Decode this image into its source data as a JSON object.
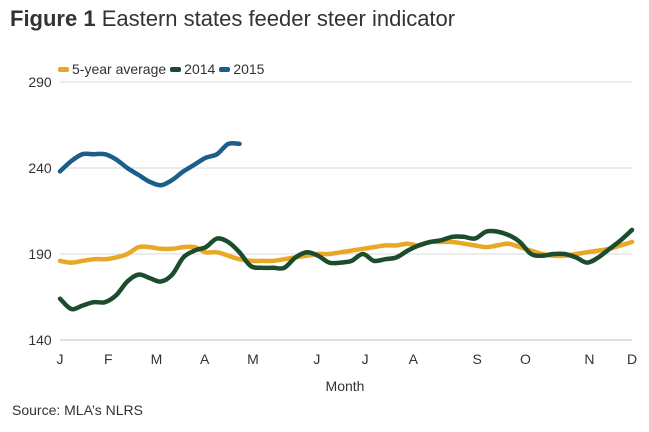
{
  "title": {
    "figure_label": "Figure 1",
    "text": "Eastern states feeder steer indicator"
  },
  "source": "Source: MLA’s NLRS",
  "chart_data": {
    "type": "line",
    "title": "Eastern states feeder steer indicator",
    "xlabel": "Month",
    "ylabel": "",
    "x_ticks": [
      "J",
      "F",
      "M",
      "A",
      "M",
      "J",
      "J",
      "A",
      "S",
      "O",
      "N",
      "D"
    ],
    "x_tick_positions": [
      0,
      4.3,
      8.6,
      12.9,
      17.2,
      22.9,
      27.2,
      31.5,
      37.2,
      41.5,
      47.2,
      51
    ],
    "xlim": [
      0,
      51
    ],
    "ylim": [
      140,
      290
    ],
    "yticks": [
      140,
      190,
      240,
      290
    ],
    "grid": "horizontal",
    "legend_position": "top-left",
    "series": [
      {
        "name": "5-year average",
        "color": "#E8A825",
        "x": [
          0,
          1,
          2,
          3,
          4,
          5,
          6,
          7,
          8,
          9,
          10,
          11,
          12,
          13,
          14,
          15,
          16,
          17,
          18,
          19,
          20,
          21,
          22,
          23,
          24,
          25,
          26,
          27,
          28,
          29,
          30,
          31,
          32,
          33,
          34,
          35,
          36,
          37,
          38,
          39,
          40,
          41,
          42,
          43,
          44,
          45,
          46,
          47,
          48,
          49,
          50,
          51
        ],
        "values": [
          186,
          185,
          186,
          187,
          187,
          188,
          190,
          194,
          194,
          193,
          193,
          194,
          194,
          191,
          191,
          189,
          187,
          186,
          186,
          186,
          187,
          188,
          189,
          190,
          190,
          191,
          192,
          193,
          194,
          195,
          195,
          196,
          195,
          197,
          197,
          197,
          196,
          195,
          194,
          195,
          196,
          194,
          192,
          190,
          189,
          189,
          190,
          191,
          192,
          193,
          195,
          197
        ]
      },
      {
        "name": "2014",
        "color": "#1B4D2C",
        "x": [
          0,
          1,
          2,
          3,
          4,
          5,
          6,
          7,
          8,
          9,
          10,
          11,
          12,
          13,
          14,
          15,
          16,
          17,
          18,
          19,
          20,
          21,
          22,
          23,
          24,
          25,
          26,
          27,
          28,
          29,
          30,
          31,
          32,
          33,
          34,
          35,
          36,
          37,
          38,
          39,
          40,
          41,
          42,
          43,
          44,
          45,
          46,
          47,
          48,
          49,
          50,
          51
        ],
        "values": [
          164,
          158,
          160,
          162,
          162,
          166,
          174,
          178,
          176,
          174,
          178,
          188,
          192,
          194,
          199,
          197,
          191,
          183,
          182,
          182,
          182,
          188,
          191,
          189,
          185,
          185,
          186,
          190,
          186,
          187,
          188,
          192,
          195,
          197,
          198,
          200,
          200,
          199,
          203,
          203,
          201,
          197,
          190,
          189,
          190,
          190,
          188,
          185,
          188,
          193,
          198,
          204
        ]
      },
      {
        "name": "2015",
        "color": "#1B5E8A",
        "x": [
          0,
          1,
          2,
          3,
          4,
          5,
          6,
          7,
          8,
          9,
          10,
          11,
          12,
          13,
          14,
          15,
          16
        ],
        "values": [
          238,
          244,
          248,
          248,
          248,
          245,
          240,
          236,
          232,
          230,
          233,
          238,
          242,
          246,
          248,
          254,
          254
        ]
      }
    ]
  }
}
